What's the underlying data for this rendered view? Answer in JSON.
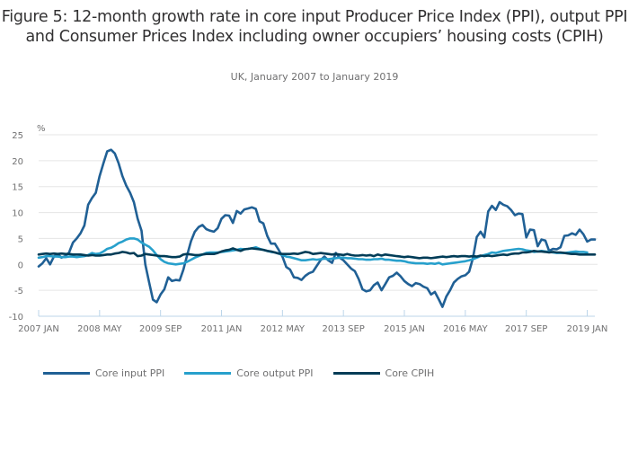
{
  "chart_data": {
    "type": "line",
    "title": "Figure 5: 12-month growth rate in core input Producer Price Index (PPI), output PPI and Consumer Prices Index including owner occupiers’ housing costs (CPIH)",
    "subtitle": "UK, January 2007 to January 2019",
    "xlabel": "",
    "ylabel": "%",
    "ylim": [
      -10,
      25
    ],
    "yticks": [
      25,
      20,
      15,
      10,
      5,
      0,
      -5,
      -10
    ],
    "ytick_labels": [
      "25",
      "20",
      "15",
      "10",
      "5",
      "0",
      "-5",
      "-10"
    ],
    "xticks_month_index": [
      0,
      16,
      32,
      48,
      64,
      80,
      96,
      112,
      128,
      144
    ],
    "xtick_labels": [
      "2007 JAN",
      "2008 MAY",
      "2009 SEP",
      "2011 JAN",
      "2012 MAY",
      "2013 SEP",
      "2015 JAN",
      "2016 MAY",
      "2017 SEP",
      "2019 JAN"
    ],
    "x_start": "2007 JAN",
    "x_end": "2019 JAN",
    "grid": true,
    "legend_position": "bottom-left",
    "series": [
      {
        "name": "Core input PPI",
        "color": "#206095",
        "values": [
          -0.4,
          0.2,
          1.2,
          0.0,
          1.5,
          2.0,
          1.3,
          1.6,
          2.3,
          4.2,
          5.0,
          6.0,
          7.5,
          11.5,
          12.8,
          13.8,
          17.0,
          19.5,
          21.8,
          22.1,
          21.4,
          19.5,
          17.0,
          15.2,
          13.8,
          12.0,
          8.8,
          6.5,
          0.0,
          -3.5,
          -6.8,
          -7.3,
          -5.8,
          -4.8,
          -2.5,
          -3.2,
          -3.0,
          -3.1,
          -1.0,
          1.8,
          4.5,
          6.3,
          7.2,
          7.6,
          6.8,
          6.5,
          6.3,
          7.0,
          8.8,
          9.5,
          9.4,
          8.0,
          10.3,
          9.8,
          10.6,
          10.8,
          11.0,
          10.7,
          8.3,
          7.9,
          5.5,
          4.0,
          4.0,
          2.8,
          1.5,
          -0.5,
          -1.0,
          -2.5,
          -2.6,
          -3.0,
          -2.2,
          -1.7,
          -1.4,
          -0.3,
          0.8,
          1.5,
          0.8,
          0.3,
          2.2,
          1.3,
          0.8,
          0.0,
          -0.8,
          -1.3,
          -2.8,
          -4.8,
          -5.2,
          -5.0,
          -4.0,
          -3.5,
          -5.0,
          -3.8,
          -2.5,
          -2.2,
          -1.6,
          -2.3,
          -3.2,
          -3.8,
          -4.2,
          -3.6,
          -3.8,
          -4.3,
          -4.6,
          -5.8,
          -5.3,
          -6.7,
          -8.2,
          -6.2,
          -5.0,
          -3.5,
          -2.8,
          -2.3,
          -2.1,
          -1.4,
          1.2,
          5.3,
          6.3,
          5.2,
          10.2,
          11.3,
          10.5,
          12.0,
          11.5,
          11.2,
          10.5,
          9.5,
          9.8,
          9.7,
          5.2,
          6.7,
          6.6,
          3.5,
          4.8,
          4.6,
          2.6,
          3.0,
          2.9,
          3.3,
          5.5,
          5.6,
          6.0,
          5.7,
          6.7,
          5.8,
          4.4,
          4.8,
          4.8
        ]
      },
      {
        "name": "Core output PPI",
        "color": "#27a0cc",
        "values": [
          1.3,
          1.4,
          1.6,
          1.6,
          1.5,
          1.5,
          1.4,
          1.4,
          1.5,
          1.5,
          1.4,
          1.5,
          1.6,
          1.8,
          2.2,
          2.0,
          2.1,
          2.5,
          3.0,
          3.2,
          3.6,
          4.1,
          4.4,
          4.8,
          5.0,
          5.0,
          4.8,
          4.2,
          3.8,
          3.4,
          2.7,
          1.8,
          1.0,
          0.5,
          0.2,
          0.1,
          0.0,
          0.1,
          0.2,
          0.5,
          0.9,
          1.3,
          1.6,
          1.9,
          2.2,
          2.3,
          2.3,
          2.3,
          2.4,
          2.5,
          2.6,
          2.7,
          2.8,
          3.0,
          2.9,
          3.0,
          3.1,
          3.3,
          3.0,
          2.8,
          2.6,
          2.4,
          2.3,
          2.1,
          1.8,
          1.5,
          1.4,
          1.2,
          1.0,
          0.8,
          0.8,
          0.9,
          1.0,
          0.9,
          1.0,
          1.1,
          1.0,
          1.1,
          1.2,
          1.3,
          1.3,
          1.2,
          1.2,
          1.1,
          1.0,
          1.0,
          0.9,
          0.9,
          1.0,
          1.0,
          1.1,
          0.9,
          0.9,
          0.8,
          0.7,
          0.7,
          0.6,
          0.4,
          0.3,
          0.2,
          0.2,
          0.2,
          0.1,
          0.2,
          0.1,
          0.3,
          0.0,
          0.1,
          0.2,
          0.3,
          0.4,
          0.5,
          0.6,
          0.8,
          1.0,
          1.3,
          1.6,
          1.8,
          2.0,
          2.3,
          2.2,
          2.4,
          2.6,
          2.7,
          2.8,
          2.9,
          3.0,
          2.9,
          2.7,
          2.6,
          2.4,
          2.5,
          2.6,
          2.5,
          2.4,
          2.3,
          2.2,
          2.2,
          2.2,
          2.3,
          2.4,
          2.5,
          2.4,
          2.4,
          2.3
        ]
      },
      {
        "name": "Core CPIH",
        "color": "#003c57",
        "values": [
          1.9,
          2.0,
          2.1,
          2.0,
          2.1,
          2.0,
          2.1,
          2.0,
          2.0,
          1.9,
          1.9,
          1.9,
          1.8,
          1.7,
          1.8,
          1.7,
          1.7,
          1.8,
          1.9,
          1.9,
          2.1,
          2.2,
          2.4,
          2.3,
          2.1,
          2.2,
          1.6,
          1.7,
          2.0,
          1.9,
          1.8,
          1.7,
          1.6,
          1.6,
          1.5,
          1.4,
          1.4,
          1.5,
          1.9,
          2.0,
          1.9,
          1.8,
          1.8,
          1.9,
          2.0,
          2.0,
          2.0,
          2.2,
          2.5,
          2.7,
          2.8,
          3.1,
          2.8,
          2.6,
          2.9,
          3.0,
          3.1,
          3.0,
          2.9,
          2.8,
          2.6,
          2.5,
          2.3,
          2.1,
          2.0,
          2.0,
          2.0,
          2.1,
          2.0,
          2.2,
          2.4,
          2.3,
          2.0,
          2.1,
          2.2,
          2.1,
          2.0,
          1.9,
          2.0,
          1.9,
          1.8,
          2.0,
          1.8,
          1.7,
          1.7,
          1.8,
          1.7,
          1.8,
          1.6,
          1.9,
          1.7,
          1.9,
          1.8,
          1.7,
          1.6,
          1.5,
          1.4,
          1.5,
          1.4,
          1.3,
          1.2,
          1.3,
          1.3,
          1.2,
          1.3,
          1.4,
          1.5,
          1.4,
          1.5,
          1.6,
          1.5,
          1.6,
          1.6,
          1.5,
          1.6,
          1.5,
          1.7,
          1.6,
          1.7,
          1.6,
          1.7,
          1.8,
          1.9,
          1.8,
          2.0,
          2.1,
          2.1,
          2.3,
          2.3,
          2.4,
          2.6,
          2.5,
          2.5,
          2.4,
          2.3,
          2.4,
          2.3,
          2.3,
          2.2,
          2.1,
          2.0,
          2.0,
          1.9,
          1.9,
          1.9,
          1.9,
          1.9
        ]
      }
    ]
  }
}
